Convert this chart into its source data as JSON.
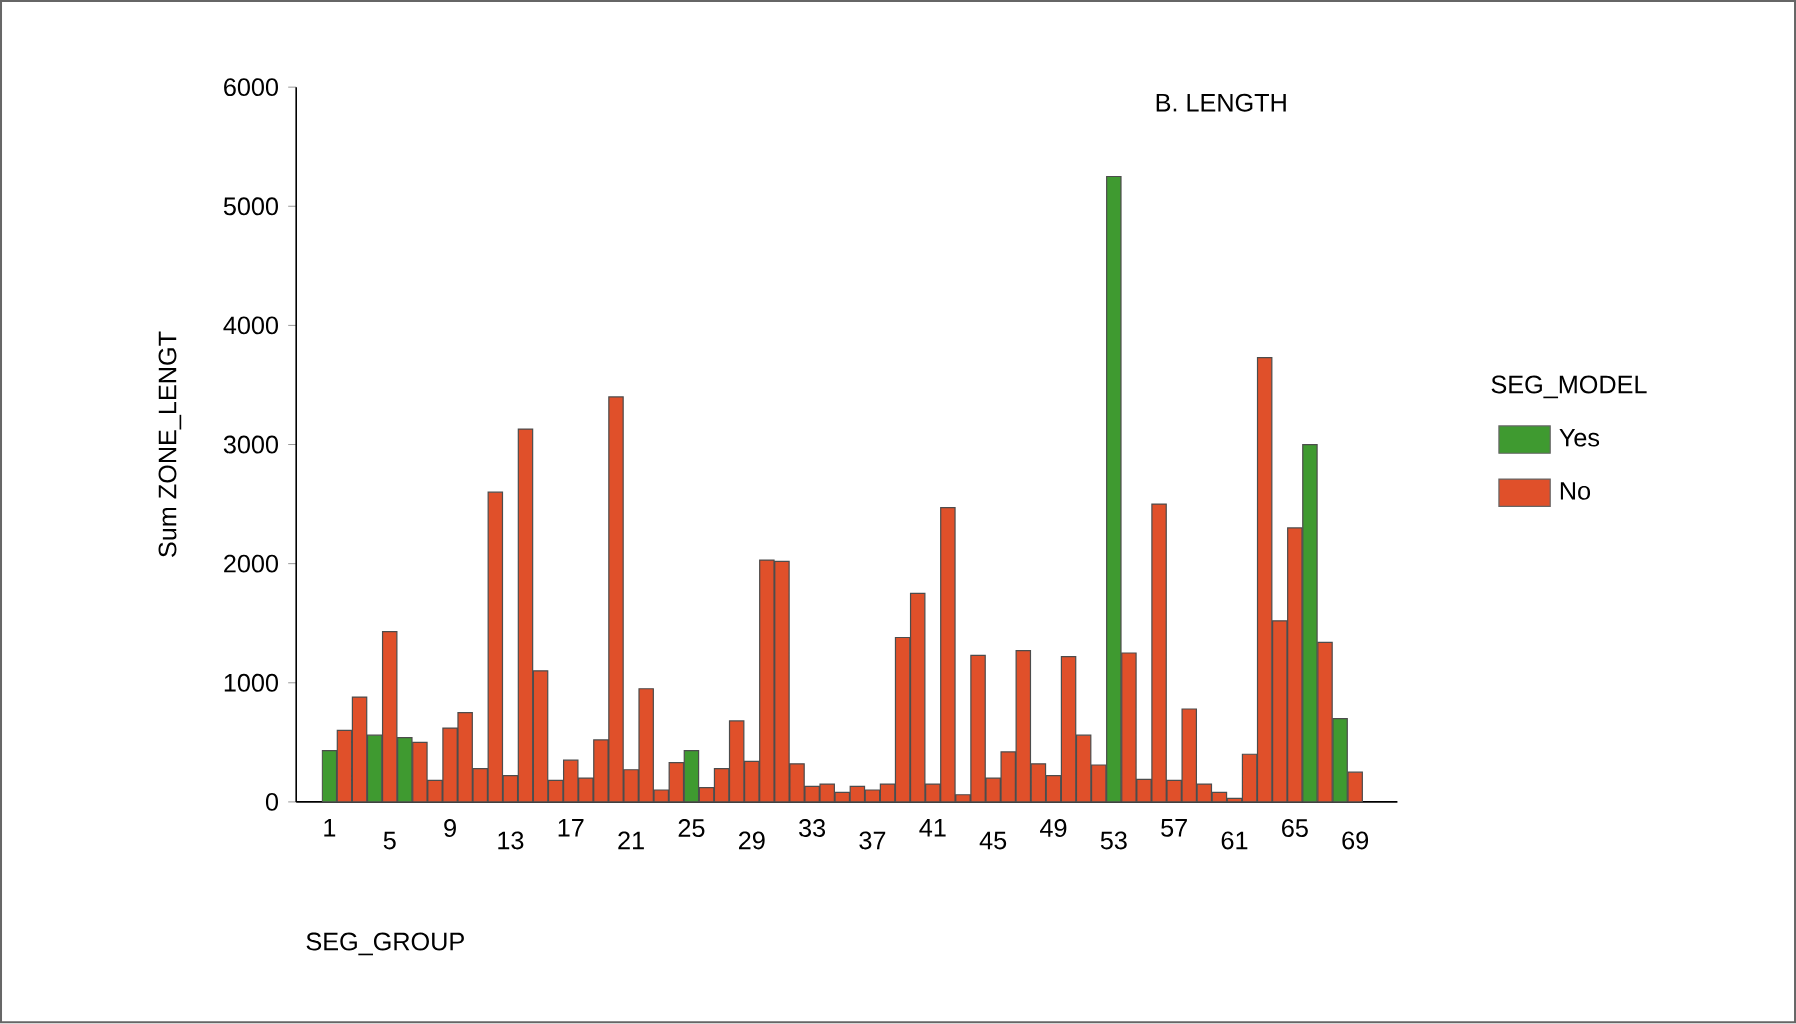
{
  "chart_data": {
    "type": "bar",
    "title": "B. LENGTH",
    "xlabel": "SEG_GROUP",
    "ylabel": "Sum ZONE_LENGT",
    "legend_title": "SEG_MODEL",
    "legend": "right",
    "categories": [
      "1",
      null,
      null,
      null,
      "5",
      null,
      null,
      null,
      "9",
      null,
      null,
      null,
      "13",
      null,
      null,
      null,
      "17",
      null,
      null,
      null,
      "21",
      null,
      null,
      null,
      "25",
      null,
      null,
      null,
      "29",
      null,
      null,
      null,
      "33",
      null,
      null,
      null,
      "37",
      null,
      null,
      null,
      "41",
      null,
      null,
      null,
      "45",
      null,
      null,
      null,
      "49",
      null,
      null,
      null,
      "53",
      null,
      null,
      null,
      "57",
      null,
      null,
      null,
      "61",
      null,
      null,
      null,
      "65",
      null,
      null,
      null,
      "69",
      null
    ],
    "series": [
      {
        "name": "Yes",
        "color": "#3f9a30",
        "values": [
          430,
          null,
          null,
          560,
          null,
          540,
          null,
          null,
          null,
          null,
          null,
          null,
          null,
          null,
          null,
          null,
          null,
          null,
          null,
          null,
          null,
          null,
          null,
          null,
          430,
          null,
          null,
          null,
          null,
          null,
          null,
          null,
          null,
          null,
          null,
          null,
          null,
          null,
          null,
          null,
          null,
          null,
          null,
          null,
          null,
          null,
          null,
          null,
          null,
          null,
          null,
          null,
          5250,
          null,
          null,
          null,
          null,
          null,
          null,
          null,
          null,
          null,
          null,
          null,
          null,
          3000,
          null,
          700,
          null,
          null
        ]
      },
      {
        "name": "No",
        "color": "#e0502a",
        "values": [
          null,
          600,
          880,
          null,
          1430,
          null,
          500,
          180,
          620,
          750,
          280,
          2600,
          220,
          3130,
          1100,
          180,
          350,
          200,
          520,
          3400,
          270,
          950,
          100,
          330,
          null,
          120,
          280,
          680,
          340,
          2030,
          2020,
          320,
          130,
          150,
          80,
          130,
          100,
          150,
          1380,
          1750,
          150,
          2470,
          60,
          1230,
          200,
          420,
          1270,
          320,
          220,
          1220,
          560,
          310,
          null,
          1250,
          190,
          2500,
          180,
          780,
          150,
          80,
          30,
          400,
          3730,
          1520,
          2300,
          null,
          1340,
          null,
          250,
          null
        ]
      }
    ],
    "ylim": [
      0,
      6000
    ],
    "yticks": [
      0,
      1000,
      2000,
      3000,
      4000,
      5000,
      6000
    ]
  }
}
